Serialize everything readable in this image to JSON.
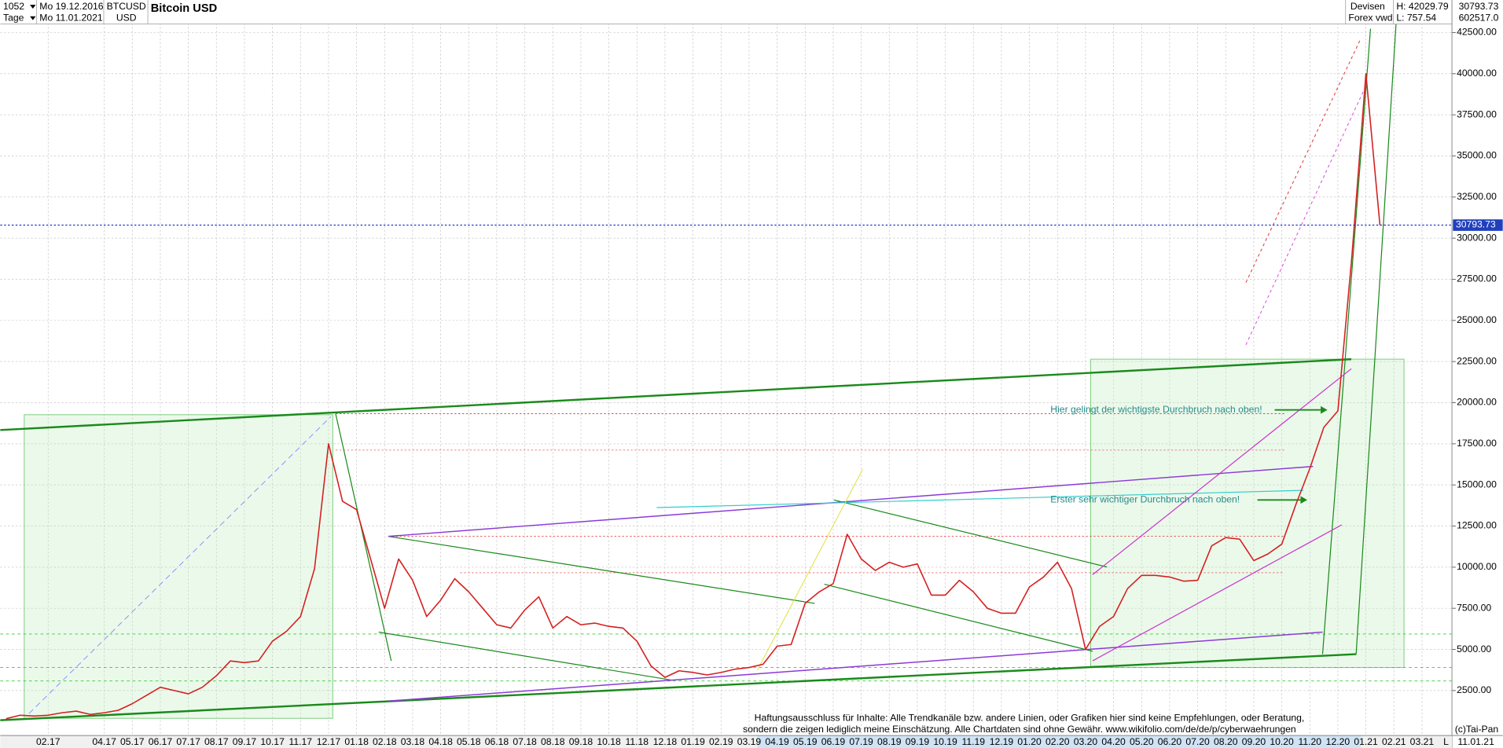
{
  "header": {
    "period": "1052",
    "unit": "Tage",
    "from": "Mo 19.12.2016",
    "to": "Mo 11.01.2021",
    "symbol": "BTCUSD",
    "currency": "USD",
    "market": "Devisen",
    "source": "Forex vwd",
    "high": "H: 42029.79",
    "low": "L: 757.54",
    "volume": "602517.0"
  },
  "footer": {
    "disclaimer_1": "Haftungsausschluss für Inhalte: Alle Trendkanäle bzw. andere Linien, oder Grafiken hier sind keine Empfehlungen, oder Beratung,",
    "disclaimer_2": "sondern die zeigen lediglich meine  Einschätzung. Alle Chartdaten sind ohne Gewähr.  www.wikifolio.com/de/de/p/cyberwaehrungen",
    "copyright": "(c)Tai-Pan",
    "last_date": "11.01.21",
    "scale": "L"
  },
  "chart_data": {
    "type": "line",
    "title": "Bitcoin USD",
    "annotations": [
      "Hier gelingt der wichtigste Durchbruch nach oben!",
      "Erster sehr wichtiger Durchbruch nach oben!"
    ],
    "categories": [
      null,
      null,
      null,
      "02.17",
      null,
      null,
      null,
      "04.17",
      null,
      "05.17",
      null,
      "06.17",
      null,
      "07.17",
      null,
      "08.17",
      null,
      "09.17",
      null,
      "10.17",
      null,
      "11.17",
      null,
      "12.17",
      null,
      "01.18",
      null,
      "02.18",
      null,
      "03.18",
      null,
      "04.18",
      null,
      "05.18",
      null,
      "06.18",
      null,
      "07.18",
      null,
      "08.18",
      null,
      "09.18",
      null,
      "10.18",
      null,
      "11.18",
      null,
      "12.18",
      null,
      "01.19",
      null,
      "02.19",
      null,
      "03.19",
      null,
      "04.19",
      null,
      "05.19",
      null,
      "06.19",
      null,
      "07.19",
      null,
      "08.19",
      null,
      "09.19",
      null,
      "10.19",
      null,
      "11.19",
      null,
      "12.19",
      null,
      "01.20",
      null,
      "02.20",
      null,
      "03.20",
      null,
      "04.20",
      null,
      "05.20",
      null,
      "06.20",
      null,
      "07.20",
      null,
      "08.20",
      null,
      "09.20",
      null,
      "10.20",
      null,
      "11.20",
      null,
      "12.20",
      null,
      "01.21",
      null,
      "02.21",
      null,
      "03.21",
      null
    ],
    "values": [
      790,
      1000,
      950,
      1000,
      1150,
      1250,
      1050,
      1150,
      1300,
      1700,
      2200,
      2700,
      2500,
      2300,
      2700,
      3400,
      4300,
      4200,
      4300,
      5500,
      6100,
      7000,
      9900,
      17500,
      14000,
      13500,
      10500,
      7500,
      10500,
      9200,
      7000,
      8000,
      9300,
      8500,
      7500,
      6500,
      6300,
      7400,
      8200,
      6300,
      7000,
      6500,
      6600,
      6400,
      6300,
      5500,
      4000,
      3300,
      3700,
      3600,
      3450,
      3600,
      3800,
      3900,
      4100,
      5200,
      5300,
      7800,
      8500,
      9000,
      12000,
      10500,
      9800,
      10300,
      10000,
      10200,
      8300,
      8300,
      9200,
      8500,
      7500,
      7200,
      7200,
      8800,
      9400,
      10300,
      8700,
      5000,
      6400,
      7000,
      8700,
      9500,
      9500,
      9400,
      9150,
      9200,
      11300,
      11800,
      11700,
      10400,
      10800,
      11400,
      13800,
      16000,
      18500,
      19500,
      28900,
      40000,
      30793.73,
      null,
      null,
      null,
      null
    ],
    "color": "#d42020",
    "ylim": [
      -236,
      43082
    ],
    "yticks": [
      {
        "value": 2500,
        "label": "2500.00"
      },
      {
        "value": 5000,
        "label": "5000.00"
      },
      {
        "value": 7500,
        "label": "7500.00"
      },
      {
        "value": 10000,
        "label": "10000.00"
      },
      {
        "value": 12500,
        "label": "12500.00"
      },
      {
        "value": 15000,
        "label": "15000.00"
      },
      {
        "value": 17500,
        "label": "17500.00"
      },
      {
        "value": 20000,
        "label": "20000.00"
      },
      {
        "value": 22500,
        "label": "22500.00"
      },
      {
        "value": 25000,
        "label": "25000.00"
      },
      {
        "value": 27500,
        "label": "27500.00"
      },
      {
        "value": 30000,
        "label": "30000.00"
      },
      {
        "value": 32500,
        "label": "32500.00"
      },
      {
        "value": 35000,
        "label": "35000.00"
      },
      {
        "value": 37500,
        "label": "37500.00"
      },
      {
        "value": 40000,
        "label": "40000.00"
      },
      {
        "value": 42500,
        "label": "42500.00"
      }
    ],
    "grid": true
  }
}
